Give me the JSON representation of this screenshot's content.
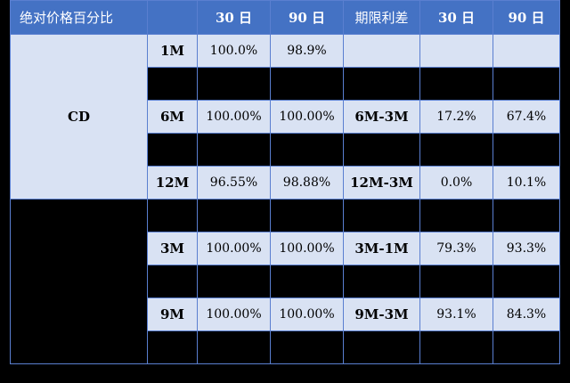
{
  "header": [
    "绝对价格百分比",
    "",
    "30 日",
    "90 日",
    "期限利差",
    "30 日",
    "90 日"
  ],
  "group1": "CD",
  "rows": [
    {
      "tenor": "1M",
      "p30": "100.0%",
      "p90": "98.9%",
      "spread": "",
      "s30": "",
      "s90": ""
    },
    {
      "tenor": "6M",
      "p30": "100.00%",
      "p90": "100.00%",
      "spread": "6M-3M",
      "s30": "17.2%",
      "s90": "67.4%"
    },
    {
      "tenor": "12M",
      "p30": "96.55%",
      "p90": "98.88%",
      "spread": "12M-3M",
      "s30": "0.0%",
      "s90": "10.1%"
    },
    {
      "tenor": "3M",
      "p30": "100.00%",
      "p90": "100.00%",
      "spread": "3M-1M",
      "s30": "79.3%",
      "s90": "93.3%"
    },
    {
      "tenor": "9M",
      "p30": "100.00%",
      "p90": "100.00%",
      "spread": "9M-3M",
      "s30": "93.1%",
      "s90": "84.3%"
    }
  ]
}
